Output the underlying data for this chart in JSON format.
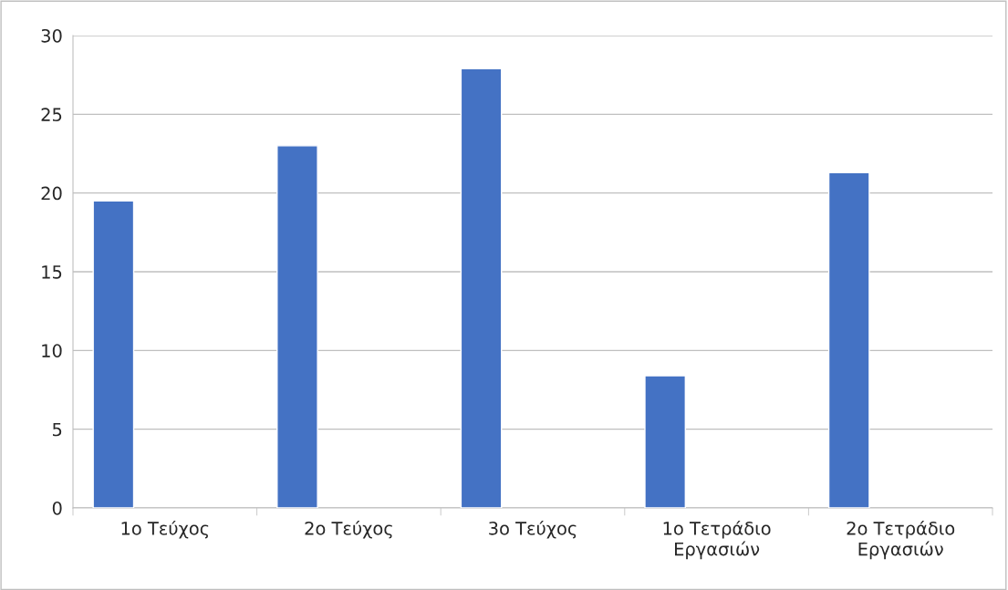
{
  "chart_data": {
    "type": "bar",
    "categories": [
      "1ο Τεύχος",
      "2ο Τεύχος",
      "3ο Τεύχος",
      "1ο Τετράδιο\nΕργασιών",
      "2ο Τετράδιο\nΕργασιών"
    ],
    "values": [
      19.5,
      23.0,
      27.9,
      8.4,
      21.3
    ],
    "color": "#4472c4",
    "ylim": [
      0,
      30
    ],
    "yticks": [
      0,
      5,
      10,
      15,
      20,
      25,
      30
    ],
    "grid": "y",
    "legend": false
  }
}
